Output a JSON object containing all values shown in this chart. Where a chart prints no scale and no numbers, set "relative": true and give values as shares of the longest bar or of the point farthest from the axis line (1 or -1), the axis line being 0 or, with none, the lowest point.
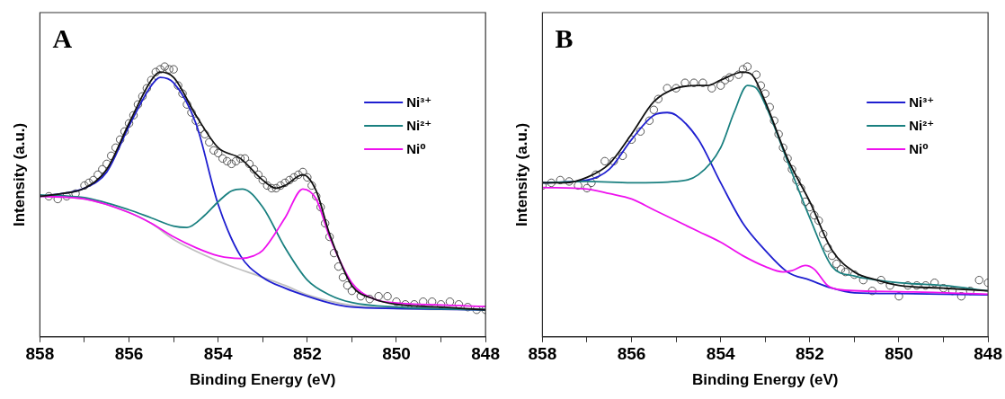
{
  "chart_data": [
    {
      "type": "line",
      "relative": true,
      "annotations": [
        "A"
      ],
      "xlabel": "Binding Energy (eV)",
      "ylabel": "Intensity (a.u.)",
      "xlim": [
        858,
        848
      ],
      "xticks": [
        858,
        {
          "value": 857,
          "label": null
        },
        856,
        {
          "value": 855,
          "label": null
        },
        854,
        {
          "value": 853,
          "label": null
        },
        852,
        {
          "value": 851,
          "label": null
        },
        850,
        {
          "value": 849,
          "label": null
        },
        848
      ],
      "tick_labels": "x",
      "grid": false,
      "legend": "top right",
      "series": [
        {
          "type": "scatter",
          "marker": "circle",
          "color": "#555555",
          "x": [
            857.8,
            857.6,
            857.4,
            857.2,
            857.0,
            856.9,
            856.8,
            856.7,
            856.6,
            856.5,
            856.4,
            856.3,
            856.2,
            856.1,
            856.0,
            855.9,
            855.8,
            855.7,
            855.6,
            855.5,
            855.4,
            855.3,
            855.2,
            855.1,
            855.0,
            854.9,
            854.8,
            854.7,
            854.6,
            854.5,
            854.4,
            854.3,
            854.2,
            854.1,
            854.0,
            853.9,
            853.8,
            853.7,
            853.6,
            853.5,
            853.4,
            853.3,
            853.2,
            853.1,
            853.0,
            852.9,
            852.8,
            852.7,
            852.6,
            852.5,
            852.4,
            852.3,
            852.2,
            852.1,
            852.0,
            851.9,
            851.8,
            851.7,
            851.6,
            851.5,
            851.4,
            851.3,
            851.2,
            851.1,
            851.0,
            850.8,
            850.6,
            850.4,
            850.2,
            850.0,
            849.8,
            849.6,
            849.4,
            849.2,
            849.0,
            848.8,
            848.6,
            848.4,
            848.2,
            848.0
          ],
          "values": [
            0.52,
            0.51,
            0.52,
            0.53,
            0.56,
            0.57,
            0.58,
            0.6,
            0.62,
            0.64,
            0.67,
            0.7,
            0.73,
            0.76,
            0.79,
            0.82,
            0.86,
            0.89,
            0.92,
            0.95,
            0.98,
            0.99,
            1.0,
            0.99,
            0.99,
            0.93,
            0.9,
            0.86,
            0.83,
            0.8,
            0.77,
            0.75,
            0.72,
            0.69,
            0.68,
            0.66,
            0.65,
            0.64,
            0.65,
            0.66,
            0.66,
            0.64,
            0.62,
            0.6,
            0.58,
            0.56,
            0.55,
            0.55,
            0.56,
            0.57,
            0.58,
            0.59,
            0.6,
            0.61,
            0.59,
            0.56,
            0.52,
            0.48,
            0.42,
            0.37,
            0.31,
            0.26,
            0.22,
            0.19,
            0.17,
            0.15,
            0.14,
            0.15,
            0.15,
            0.13,
            0.12,
            0.12,
            0.13,
            0.13,
            0.12,
            0.13,
            0.12,
            0.11,
            0.1,
            0.1
          ]
        },
        {
          "type": "line",
          "color": "#c0c0c0",
          "x": [
            858,
            857,
            856,
            855.5,
            855,
            854,
            853,
            852.5,
            852,
            851,
            850,
            848
          ],
          "values": [
            0.52,
            0.51,
            0.46,
            0.42,
            0.36,
            0.28,
            0.22,
            0.19,
            0.155,
            0.116,
            0.105,
            0.1
          ]
        },
        {
          "type": "line",
          "name": "Ni³⁺",
          "color": "#1f1fd0",
          "x": [
            858,
            857.5,
            857,
            856.5,
            856,
            855.5,
            855.3,
            855,
            854.5,
            854,
            853.5,
            853,
            852.5,
            852,
            851.5,
            851,
            850,
            848
          ],
          "values": [
            0.52,
            0.53,
            0.55,
            0.61,
            0.78,
            0.93,
            0.96,
            0.94,
            0.79,
            0.49,
            0.3,
            0.22,
            0.18,
            0.15,
            0.125,
            0.11,
            0.105,
            0.1
          ]
        },
        {
          "type": "line",
          "name": "Ni²⁺",
          "color": "#1a8080",
          "x": [
            858,
            857,
            856,
            855.5,
            855,
            854.7,
            854.3,
            854,
            853.7,
            853.45,
            853,
            852.5,
            852,
            851.5,
            851,
            850,
            848
          ],
          "values": [
            0.525,
            0.515,
            0.47,
            0.44,
            0.41,
            0.405,
            0.45,
            0.5,
            0.54,
            0.547,
            0.48,
            0.33,
            0.21,
            0.155,
            0.127,
            0.11,
            0.1
          ]
        },
        {
          "type": "line",
          "name": "Ni⁰",
          "color": "#ee11ee",
          "x": [
            858,
            857,
            856,
            855.5,
            855,
            854.5,
            854,
            853.5,
            853.2,
            853,
            852.5,
            852.1,
            851.8,
            851.5,
            851,
            850.5,
            850,
            849,
            848
          ],
          "values": [
            0.52,
            0.51,
            0.46,
            0.42,
            0.37,
            0.33,
            0.3,
            0.29,
            0.3,
            0.32,
            0.44,
            0.547,
            0.51,
            0.37,
            0.2,
            0.14,
            0.125,
            0.118,
            0.112
          ]
        },
        {
          "type": "line",
          "color": "#111111",
          "x": [
            858,
            857.5,
            857,
            856.5,
            856,
            855.5,
            855.3,
            855,
            854.5,
            854,
            853.5,
            853,
            852.7,
            852.5,
            852.1,
            851.8,
            851.5,
            851,
            850.5,
            850,
            849,
            848
          ],
          "values": [
            0.52,
            0.53,
            0.55,
            0.62,
            0.79,
            0.95,
            0.98,
            0.96,
            0.82,
            0.7,
            0.66,
            0.58,
            0.55,
            0.56,
            0.6,
            0.54,
            0.38,
            0.19,
            0.14,
            0.12,
            0.11,
            0.1
          ]
        }
      ]
    },
    {
      "type": "line",
      "relative": true,
      "annotations": [
        "B"
      ],
      "xlabel": "Binding Energy (eV)",
      "ylabel": "Intensity (a.u.)",
      "xlim": [
        858,
        848
      ],
      "xticks": [
        858,
        {
          "value": 857,
          "label": null
        },
        856,
        {
          "value": 855,
          "label": null
        },
        854,
        {
          "value": 853,
          "label": null
        },
        852,
        {
          "value": 851,
          "label": null
        },
        850,
        {
          "value": 849,
          "label": null
        },
        848
      ],
      "tick_labels": "x",
      "grid": false,
      "legend": "top right",
      "series": [
        {
          "type": "scatter",
          "marker": "circle",
          "color": "#555555",
          "x": [
            858,
            857.8,
            857.6,
            857.4,
            857.2,
            857.0,
            856.9,
            856.8,
            856.6,
            856.4,
            856.2,
            856.0,
            855.8,
            855.6,
            855.5,
            855.4,
            855.2,
            855.0,
            854.8,
            854.6,
            854.4,
            854.2,
            854.0,
            853.9,
            853.8,
            853.6,
            853.5,
            853.4,
            853.2,
            853.1,
            853.0,
            852.9,
            852.8,
            852.7,
            852.6,
            852.5,
            852.4,
            852.3,
            852.2,
            852.1,
            852.0,
            851.9,
            851.8,
            851.7,
            851.6,
            851.5,
            851.4,
            851.3,
            851.2,
            851.0,
            850.8,
            850.6,
            850.4,
            850.2,
            850.0,
            849.8,
            849.6,
            849.4,
            849.2,
            849.0,
            848.8,
            848.6,
            848.4,
            848.2,
            848.0
          ],
          "values": [
            0.56,
            0.57,
            0.58,
            0.575,
            0.56,
            0.55,
            0.57,
            0.6,
            0.65,
            0.65,
            0.67,
            0.73,
            0.76,
            0.8,
            0.84,
            0.88,
            0.92,
            0.92,
            0.94,
            0.94,
            0.94,
            0.92,
            0.93,
            0.95,
            0.96,
            0.97,
            0.99,
            1.0,
            0.97,
            0.93,
            0.9,
            0.85,
            0.8,
            0.75,
            0.7,
            0.66,
            0.62,
            0.58,
            0.55,
            0.5,
            0.48,
            0.45,
            0.43,
            0.38,
            0.33,
            0.3,
            0.27,
            0.25,
            0.24,
            0.23,
            0.21,
            0.17,
            0.21,
            0.19,
            0.15,
            0.19,
            0.19,
            0.19,
            0.2,
            0.18,
            0.17,
            0.15,
            0.17,
            0.21,
            0.2
          ]
        },
        {
          "type": "line",
          "name": "Ni³⁺",
          "color": "#1f1fd0",
          "x": [
            858,
            857,
            856.5,
            856,
            855.5,
            855.2,
            855,
            854.5,
            854,
            853.5,
            853,
            852.5,
            852,
            851.5,
            851,
            850,
            848
          ],
          "values": [
            0.57,
            0.58,
            0.62,
            0.73,
            0.82,
            0.83,
            0.82,
            0.73,
            0.57,
            0.42,
            0.32,
            0.24,
            0.21,
            0.18,
            0.163,
            0.16,
            0.155
          ]
        },
        {
          "type": "line",
          "name": "Ni²⁺",
          "color": "#1a8080",
          "x": [
            858,
            857,
            856,
            855,
            854.5,
            854,
            853.7,
            853.4,
            853.2,
            853,
            852.5,
            852,
            851.5,
            851,
            850.5,
            850,
            849,
            848
          ],
          "values": [
            0.57,
            0.575,
            0.57,
            0.575,
            0.6,
            0.7,
            0.83,
            0.93,
            0.92,
            0.86,
            0.65,
            0.44,
            0.26,
            0.225,
            0.21,
            0.2,
            0.19,
            0.17
          ]
        },
        {
          "type": "line",
          "name": "Ni⁰",
          "color": "#ee11ee",
          "x": [
            858,
            857,
            856.5,
            856,
            855.5,
            855,
            854.5,
            854,
            853.5,
            853,
            852.6,
            852.4,
            852.1,
            851.9,
            851.6,
            851.3,
            850,
            848
          ],
          "values": [
            0.553,
            0.547,
            0.53,
            0.51,
            0.47,
            0.43,
            0.39,
            0.35,
            0.3,
            0.26,
            0.24,
            0.245,
            0.264,
            0.25,
            0.19,
            0.174,
            0.167,
            0.158
          ]
        },
        {
          "type": "line",
          "color": "#111111",
          "x": [
            858,
            857.5,
            857,
            856.5,
            856,
            855.5,
            855,
            854.5,
            854.3,
            854,
            853.5,
            853.3,
            853,
            852.5,
            852,
            851.5,
            851,
            850.5,
            850,
            849,
            848
          ],
          "values": [
            0.57,
            0.57,
            0.59,
            0.64,
            0.75,
            0.87,
            0.92,
            0.93,
            0.93,
            0.95,
            0.98,
            0.97,
            0.87,
            0.66,
            0.5,
            0.32,
            0.24,
            0.21,
            0.19,
            0.18,
            0.17
          ]
        }
      ]
    }
  ]
}
